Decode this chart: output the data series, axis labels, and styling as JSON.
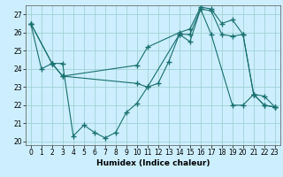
{
  "xlabel": "Humidex (Indice chaleur)",
  "bg_color": "#cceeff",
  "line_color": "#1a7070",
  "grid_color": "#99cccc",
  "series": [
    {
      "x": [
        0,
        1,
        2,
        3,
        4,
        5,
        6,
        7,
        8,
        9,
        10,
        11,
        12,
        13,
        14,
        15,
        16,
        17,
        18,
        19,
        20,
        21,
        22,
        23
      ],
      "y": [
        26.5,
        24.0,
        24.3,
        24.3,
        20.3,
        20.9,
        20.5,
        20.2,
        20.5,
        21.6,
        22.1,
        23.0,
        23.2,
        24.4,
        25.9,
        25.9,
        27.3,
        27.2,
        25.9,
        25.8,
        25.9,
        22.6,
        22.0,
        21.9
      ],
      "marker_x": [
        0,
        1,
        2,
        3,
        4,
        5,
        6,
        7,
        8,
        9,
        10,
        11,
        12,
        13,
        14,
        15,
        16,
        17,
        18,
        19,
        20,
        21,
        22,
        23
      ],
      "marker_y": [
        26.5,
        24.0,
        24.3,
        24.3,
        20.3,
        20.9,
        20.5,
        20.2,
        20.5,
        21.6,
        22.1,
        23.0,
        23.2,
        24.4,
        25.9,
        25.9,
        27.3,
        27.2,
        25.9,
        25.8,
        25.9,
        22.6,
        22.0,
        21.9
      ]
    },
    {
      "x": [
        0,
        2,
        3,
        10,
        11,
        14,
        15,
        16,
        17,
        19,
        20,
        21,
        22,
        23
      ],
      "y": [
        26.5,
        24.3,
        23.6,
        23.2,
        23.0,
        25.9,
        25.5,
        27.3,
        25.9,
        22.0,
        22.0,
        22.6,
        22.0,
        21.9
      ],
      "marker_x": [
        0,
        2,
        3,
        10,
        11,
        14,
        15,
        16,
        17,
        19,
        20,
        21,
        22,
        23
      ],
      "marker_y": [
        26.5,
        24.3,
        23.6,
        23.2,
        23.0,
        25.9,
        25.5,
        27.3,
        25.9,
        22.0,
        22.0,
        22.6,
        22.0,
        21.9
      ]
    },
    {
      "x": [
        0,
        2,
        3,
        10,
        11,
        14,
        15,
        16,
        17,
        18,
        19,
        20,
        21,
        22,
        23
      ],
      "y": [
        26.5,
        24.3,
        23.6,
        24.2,
        25.2,
        26.0,
        26.2,
        27.4,
        27.3,
        26.5,
        26.7,
        25.9,
        22.6,
        22.5,
        21.9
      ],
      "marker_x": [
        0,
        2,
        3,
        10,
        11,
        14,
        15,
        16,
        17,
        18,
        19,
        20,
        21,
        22,
        23
      ],
      "marker_y": [
        26.5,
        24.3,
        23.6,
        24.2,
        25.2,
        26.0,
        26.2,
        27.4,
        27.3,
        26.5,
        26.7,
        25.9,
        22.6,
        22.5,
        21.9
      ]
    }
  ],
  "ylim": [
    19.8,
    27.5
  ],
  "xlim": [
    -0.5,
    23.5
  ],
  "yticks": [
    20,
    21,
    22,
    23,
    24,
    25,
    26,
    27
  ],
  "xticks": [
    0,
    1,
    2,
    3,
    4,
    5,
    6,
    7,
    8,
    9,
    10,
    11,
    12,
    13,
    14,
    15,
    16,
    17,
    18,
    19,
    20,
    21,
    22,
    23
  ],
  "markersize": 4,
  "linewidth": 0.8,
  "tick_fontsize": 5.5,
  "xlabel_fontsize": 6.5
}
